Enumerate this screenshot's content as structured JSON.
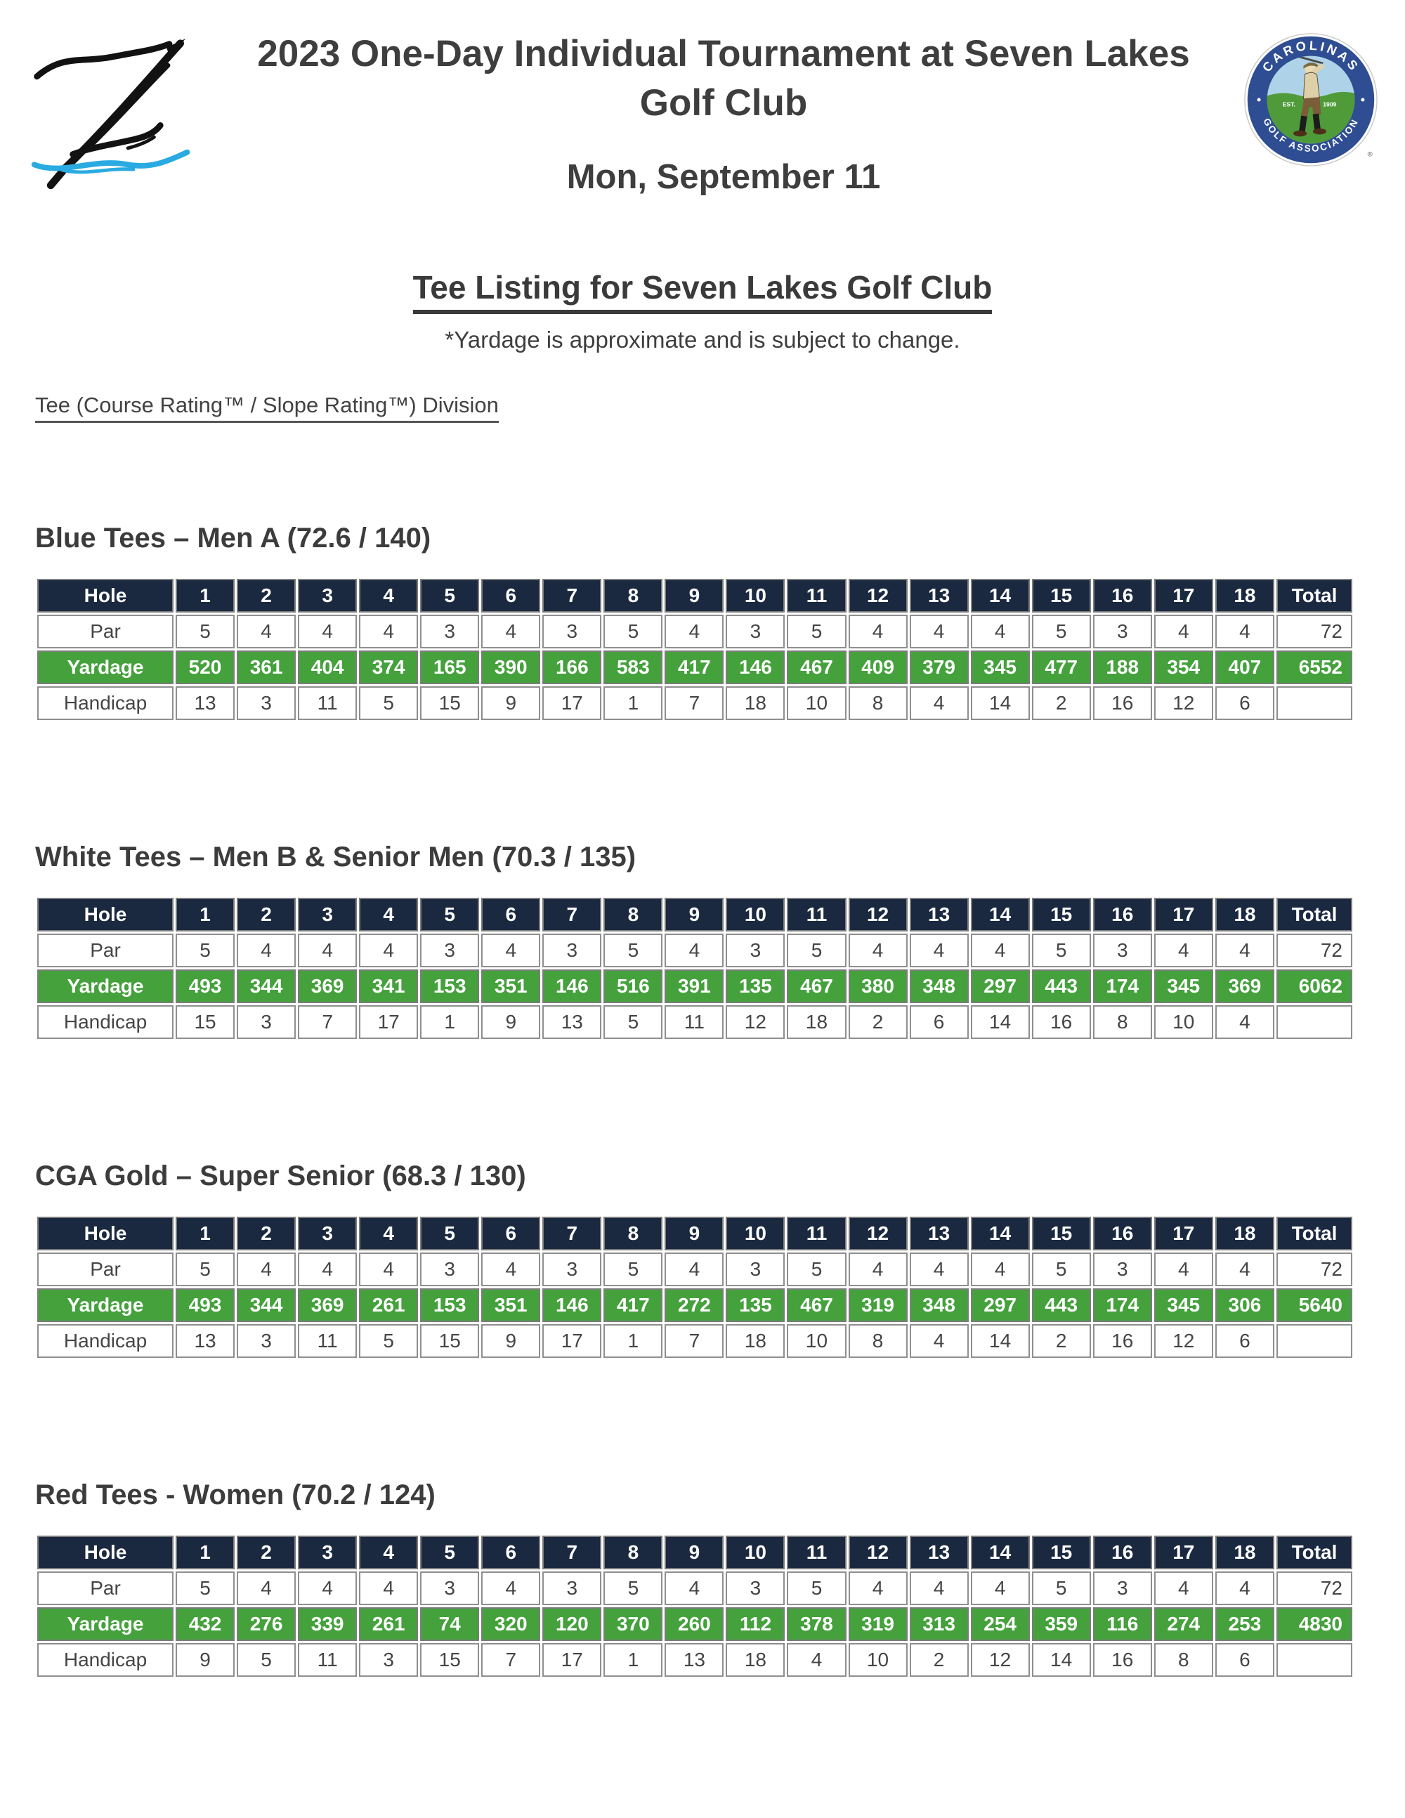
{
  "header": {
    "title_line1": "2023 One-Day Individual Tournament at Seven Lakes",
    "title_line2": "Golf Club",
    "date": "Mon, September 11"
  },
  "logos": {
    "left_alt": "hand-drawn script Z with blue water wave",
    "cga": {
      "arc_top": "CAROLINAS",
      "arc_bottom": "GOLF ASSOCIATION",
      "est": "EST.",
      "year": "1909",
      "registered": "®"
    }
  },
  "listing": {
    "title": "Tee Listing for Seven Lakes Golf Club",
    "note": "*Yardage is approximate and is subject to change.",
    "rating_legend": "Tee (Course Rating™ / Slope Rating™) Division"
  },
  "table": {
    "row_labels": [
      "Hole",
      "Par",
      "Yardage",
      "Handicap"
    ],
    "holes": [
      "1",
      "2",
      "3",
      "4",
      "5",
      "6",
      "7",
      "8",
      "9",
      "10",
      "11",
      "12",
      "13",
      "14",
      "15",
      "16",
      "17",
      "18"
    ],
    "total_label": "Total"
  },
  "colors": {
    "header_navy": "#1a2940",
    "yardage_green": "#44a13c",
    "cell_border": "#8f8f8f",
    "wave_blue": "#29abe2",
    "cga_ring_blue": "#2e4d92",
    "cga_sky": "#aed3e8",
    "cga_grass": "#4f9b3a"
  },
  "sections": [
    {
      "heading": "Blue Tees – Men A (72.6 / 140)",
      "par": [
        5,
        4,
        4,
        4,
        3,
        4,
        3,
        5,
        4,
        3,
        5,
        4,
        4,
        4,
        5,
        3,
        4,
        4
      ],
      "par_total": 72,
      "yardage": [
        520,
        361,
        404,
        374,
        165,
        390,
        166,
        583,
        417,
        146,
        467,
        409,
        379,
        345,
        477,
        188,
        354,
        407
      ],
      "yardage_total": 6552,
      "handicap": [
        13,
        3,
        11,
        5,
        15,
        9,
        17,
        1,
        7,
        18,
        10,
        8,
        4,
        14,
        2,
        16,
        12,
        6
      ],
      "handicap_total": ""
    },
    {
      "heading": "White Tees – Men B & Senior Men (70.3 / 135)",
      "par": [
        5,
        4,
        4,
        4,
        3,
        4,
        3,
        5,
        4,
        3,
        5,
        4,
        4,
        4,
        5,
        3,
        4,
        4
      ],
      "par_total": 72,
      "yardage": [
        493,
        344,
        369,
        341,
        153,
        351,
        146,
        516,
        391,
        135,
        467,
        380,
        348,
        297,
        443,
        174,
        345,
        369
      ],
      "yardage_total": 6062,
      "handicap": [
        15,
        3,
        7,
        17,
        1,
        9,
        13,
        5,
        11,
        12,
        18,
        2,
        6,
        14,
        16,
        8,
        10,
        4
      ],
      "handicap_total": ""
    },
    {
      "heading": "CGA Gold – Super Senior (68.3 / 130)",
      "par": [
        5,
        4,
        4,
        4,
        3,
        4,
        3,
        5,
        4,
        3,
        5,
        4,
        4,
        4,
        5,
        3,
        4,
        4
      ],
      "par_total": 72,
      "yardage": [
        493,
        344,
        369,
        261,
        153,
        351,
        146,
        417,
        272,
        135,
        467,
        319,
        348,
        297,
        443,
        174,
        345,
        306
      ],
      "yardage_total": 5640,
      "handicap": [
        13,
        3,
        11,
        5,
        15,
        9,
        17,
        1,
        7,
        18,
        10,
        8,
        4,
        14,
        2,
        16,
        12,
        6
      ],
      "handicap_total": ""
    },
    {
      "heading": "Red Tees - Women (70.2 / 124)",
      "par": [
        5,
        4,
        4,
        4,
        3,
        4,
        3,
        5,
        4,
        3,
        5,
        4,
        4,
        4,
        5,
        3,
        4,
        4
      ],
      "par_total": 72,
      "yardage": [
        432,
        276,
        339,
        261,
        74,
        320,
        120,
        370,
        260,
        112,
        378,
        319,
        313,
        254,
        359,
        116,
        274,
        253
      ],
      "yardage_total": 4830,
      "handicap": [
        9,
        5,
        11,
        3,
        15,
        7,
        17,
        1,
        13,
        18,
        4,
        10,
        2,
        12,
        14,
        16,
        8,
        6
      ],
      "handicap_total": ""
    }
  ]
}
